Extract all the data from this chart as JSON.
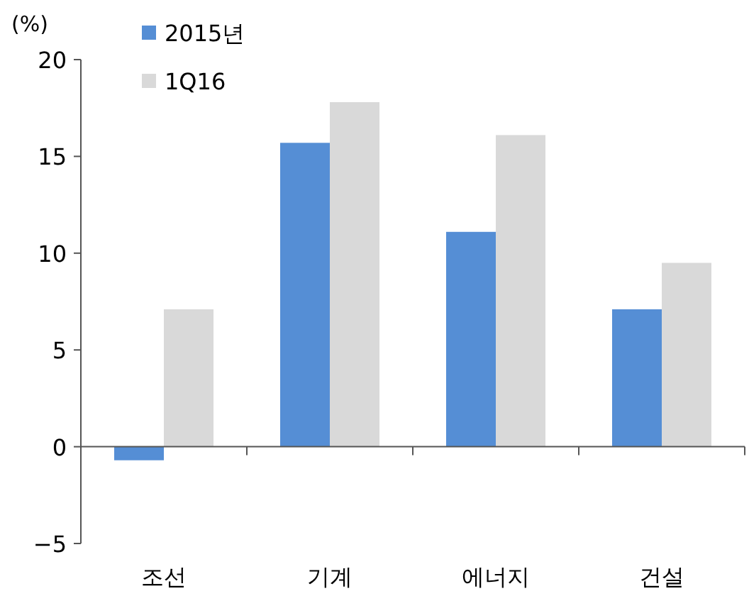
{
  "chart_data": {
    "type": "bar",
    "ylabel": "(%)",
    "categories": [
      "조선",
      "기계",
      "에너지",
      "건설"
    ],
    "series": [
      {
        "name": "2015년",
        "color": "#558ed5",
        "values": [
          -0.7,
          15.7,
          11.1,
          7.1
        ]
      },
      {
        "name": "1Q16",
        "color": "#d9d9d9",
        "values": [
          7.1,
          17.8,
          16.1,
          9.5
        ]
      }
    ],
    "ylim": [
      -5,
      20
    ],
    "yticks": [
      {
        "value": -5,
        "label": "−5"
      },
      0,
      5,
      10,
      15,
      20
    ],
    "legend": "top left"
  }
}
